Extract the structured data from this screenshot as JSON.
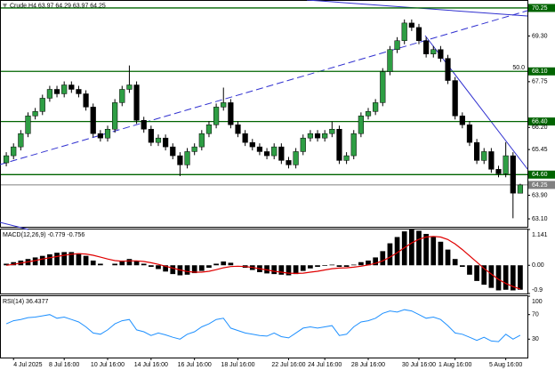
{
  "chart_data": [
    {
      "type": "candlestick",
      "title": "Crude,H4 63.97 64.29 63.97 64.25",
      "categories": [
        null,
        "4 Jul 2025",
        null,
        null,
        null,
        null,
        null,
        null,
        "8 Jul 16:00",
        null,
        null,
        null,
        null,
        null,
        "10 Jul 16:00",
        null,
        null,
        null,
        null,
        null,
        "14 Jul 16:00",
        null,
        null,
        null,
        null,
        null,
        "16 Jul 16:00",
        null,
        null,
        null,
        null,
        null,
        "18 Jul 16:00",
        null,
        null,
        null,
        null,
        null,
        null,
        "22 Jul 16:00",
        null,
        null,
        null,
        null,
        "24 Jul 16:00",
        null,
        null,
        null,
        null,
        null,
        "28 Jul 16:00",
        null,
        null,
        null,
        null,
        null,
        null,
        "30 Jul 16:00",
        null,
        null,
        null,
        null,
        "1 Aug 16:00",
        null,
        null,
        null,
        null,
        null,
        null,
        "5 Aug 16:00",
        null,
        null
      ],
      "open": [
        65.0,
        65.24,
        65.54,
        65.99,
        66.59,
        66.74,
        67.19,
        67.49,
        67.34,
        67.64,
        67.49,
        67.34,
        66.89,
        65.99,
        65.84,
        66.14,
        67.04,
        67.49,
        67.64,
        66.44,
        66.14,
        65.69,
        65.84,
        65.54,
        65.24,
        64.93,
        65.38,
        65.54,
        65.99,
        66.29,
        66.89,
        67.04,
        66.29,
        65.99,
        65.69,
        65.54,
        65.38,
        65.24,
        65.54,
        65.08,
        64.93,
        65.38,
        65.84,
        65.99,
        65.84,
        65.99,
        66.14,
        65.08,
        65.24,
        65.99,
        66.59,
        66.74,
        67.04,
        68.09,
        68.84,
        69.14,
        69.74,
        69.59,
        69.14,
        68.69,
        68.84,
        68.54,
        67.79,
        66.59,
        66.29,
        65.69,
        65.08,
        65.38,
        64.78,
        64.63,
        65.24,
        63.97
      ],
      "high": [
        65.36,
        65.66,
        66.11,
        66.71,
        66.86,
        67.31,
        67.61,
        67.61,
        67.76,
        67.76,
        67.61,
        67.46,
        67.01,
        66.11,
        66.26,
        67.16,
        67.61,
        68.3,
        67.76,
        66.56,
        66.26,
        65.96,
        65.96,
        65.66,
        65.36,
        65.5,
        65.66,
        66.11,
        66.41,
        67.01,
        67.55,
        67.16,
        66.41,
        66.11,
        65.81,
        65.66,
        65.5,
        65.66,
        65.66,
        65.2,
        65.5,
        65.96,
        66.11,
        66.11,
        66.11,
        66.4,
        66.26,
        65.36,
        66.11,
        66.71,
        66.86,
        67.16,
        68.21,
        68.96,
        69.26,
        69.86,
        69.86,
        69.71,
        69.26,
        68.96,
        68.96,
        68.66,
        67.91,
        66.71,
        66.41,
        65.81,
        65.5,
        65.5,
        64.9,
        65.7,
        65.36,
        64.29
      ],
      "low": [
        64.88,
        65.12,
        65.42,
        65.87,
        66.47,
        66.62,
        67.07,
        67.22,
        67.22,
        67.37,
        67.22,
        66.77,
        65.87,
        65.72,
        65.72,
        66.02,
        66.92,
        67.37,
        66.32,
        66.02,
        65.57,
        65.57,
        65.42,
        65.12,
        64.55,
        64.81,
        65.26,
        65.42,
        65.87,
        66.17,
        66.77,
        66.17,
        65.87,
        65.57,
        65.42,
        65.26,
        65.12,
        65.12,
        64.96,
        64.81,
        64.81,
        65.26,
        65.72,
        65.72,
        65.72,
        65.87,
        64.96,
        64.96,
        65.12,
        65.87,
        66.47,
        66.62,
        66.92,
        67.97,
        68.72,
        69.02,
        69.47,
        69.02,
        68.57,
        68.57,
        68.42,
        67.67,
        66.47,
        66.17,
        65.57,
        64.96,
        64.96,
        64.66,
        64.51,
        64.51,
        63.12,
        63.97
      ],
      "close": [
        65.24,
        65.54,
        65.99,
        66.59,
        66.74,
        67.19,
        67.49,
        67.34,
        67.64,
        67.49,
        67.34,
        66.89,
        65.99,
        65.84,
        66.14,
        67.04,
        67.49,
        67.64,
        66.44,
        66.14,
        65.69,
        65.84,
        65.54,
        65.24,
        64.93,
        65.38,
        65.54,
        65.99,
        66.29,
        66.89,
        67.04,
        66.29,
        65.99,
        65.69,
        65.54,
        65.38,
        65.24,
        65.54,
        65.08,
        64.93,
        65.38,
        65.84,
        65.99,
        65.84,
        65.99,
        66.14,
        65.08,
        65.24,
        65.99,
        66.59,
        66.74,
        67.04,
        68.09,
        68.84,
        69.14,
        69.74,
        69.59,
        69.14,
        68.69,
        68.84,
        68.54,
        67.79,
        66.59,
        66.29,
        65.69,
        65.08,
        65.38,
        64.78,
        64.63,
        65.24,
        63.97,
        64.25
      ],
      "up_color": "#2e9e44",
      "down_color": "#000000",
      "ylim": [
        62.83,
        70.49
      ],
      "yticks": [
        {
          "value": 69.3,
          "label": "69.30"
        },
        67.75,
        {
          "value": 66.2,
          "label": "66.20"
        },
        65.45,
        {
          "value": 63.9,
          "label": "63.90"
        },
        {
          "value": 63.1,
          "label": "63.10"
        }
      ],
      "levels": [
        70.25,
        {
          "value": 68.1,
          "label": "68.10"
        },
        {
          "value": 66.4,
          "label": "66.40"
        },
        {
          "value": 64.6,
          "label": "64.60"
        }
      ],
      "level_color": "#006400",
      "level_annotation": "50.0",
      "last_price": 64.25,
      "last_price_color": "#808080"
    },
    {
      "type": "macd",
      "title": "MACD(12,26,9) -0.779 -0.756",
      "values": [
        0.05,
        0.1,
        0.15,
        0.2,
        0.25,
        0.3,
        0.35,
        0.4,
        0.42,
        0.42,
        0.38,
        0.3,
        0.15,
        0.05,
        0.0,
        0.05,
        0.15,
        0.2,
        0.15,
        0.05,
        -0.05,
        -0.12,
        -0.2,
        -0.28,
        -0.32,
        -0.3,
        -0.25,
        -0.18,
        -0.08,
        0.05,
        0.12,
        0.08,
        0.0,
        -0.08,
        -0.15,
        -0.22,
        -0.26,
        -0.28,
        -0.3,
        -0.32,
        -0.28,
        -0.18,
        -0.1,
        -0.05,
        -0.02,
        0.02,
        -0.05,
        -0.05,
        0.02,
        0.1,
        0.15,
        0.25,
        0.45,
        0.7,
        0.9,
        1.08,
        1.141,
        1.1,
        1.0,
        0.9,
        0.75,
        0.5,
        0.2,
        -0.05,
        -0.3,
        -0.5,
        -0.62,
        -0.72,
        -0.8,
        -0.78,
        -0.8,
        -0.779
      ],
      "color": "#000000",
      "signal": [
        0.0,
        0.03,
        0.07,
        0.11,
        0.15,
        0.2,
        0.24,
        0.28,
        0.32,
        0.35,
        0.37,
        0.36,
        0.32,
        0.26,
        0.2,
        0.15,
        0.13,
        0.14,
        0.14,
        0.12,
        0.08,
        0.03,
        -0.03,
        -0.09,
        -0.15,
        -0.2,
        -0.22,
        -0.22,
        -0.19,
        -0.14,
        -0.08,
        -0.04,
        -0.03,
        -0.04,
        -0.07,
        -0.11,
        -0.15,
        -0.19,
        -0.22,
        -0.25,
        -0.26,
        -0.25,
        -0.22,
        -0.19,
        -0.15,
        -0.11,
        -0.09,
        -0.08,
        -0.06,
        -0.03,
        0.01,
        0.06,
        0.14,
        0.26,
        0.4,
        0.56,
        0.71,
        0.83,
        0.9,
        0.92,
        0.9,
        0.82,
        0.68,
        0.5,
        0.3,
        0.1,
        -0.1,
        -0.28,
        -0.45,
        -0.58,
        -0.68,
        -0.756
      ],
      "signal_color": "#e00000",
      "ylim": [
        -0.9,
        1.141
      ],
      "yticks": [
        1.141,
        {
          "value": 0,
          "label": "0.00"
        },
        -0.9
      ]
    },
    {
      "type": "line",
      "title": "RSI(14) 36.4377",
      "values": [
        55,
        60,
        62,
        65,
        66,
        68,
        70,
        64,
        66,
        62,
        58,
        50,
        40,
        38,
        45,
        55,
        60,
        62,
        45,
        42,
        36,
        40,
        37,
        33,
        30,
        38,
        42,
        50,
        55,
        62,
        64,
        48,
        44,
        40,
        38,
        36,
        35,
        40,
        34,
        32,
        40,
        48,
        50,
        48,
        50,
        52,
        36,
        38,
        50,
        58,
        60,
        64,
        72,
        76,
        74,
        78,
        76,
        70,
        64,
        66,
        62,
        52,
        40,
        38,
        33,
        28,
        33,
        27,
        26,
        38,
        30,
        36.4377
      ],
      "color": "#1e90ff",
      "ylim": [
        0,
        100
      ],
      "yticks": [
        100,
        70,
        30
      ]
    }
  ]
}
